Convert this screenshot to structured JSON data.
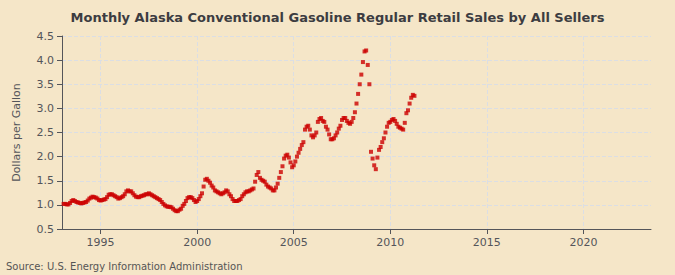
{
  "chart_data": {
    "type": "scatter",
    "title": "Monthly Alaska Conventional Gasoline Regular Retail Sales by All Sellers",
    "ylabel": "Dollars per Gallon",
    "source": "Source: U.S. Energy Information Administration",
    "color": "#cc0000",
    "marker": "square",
    "grid": true,
    "xlim": [
      1993.0,
      2023.5
    ],
    "ylim": [
      0.5,
      4.5
    ],
    "xticks": [
      1995,
      2000,
      2005,
      2010,
      2015,
      2020
    ],
    "yticks": [
      0.5,
      {
        "value": 1,
        "label": "1.0"
      },
      1.5,
      {
        "value": 2,
        "label": "2.0"
      },
      2.5,
      {
        "value": 3,
        "label": "3.0"
      },
      3.5,
      {
        "value": 4,
        "label": "4.0"
      },
      4.5
    ],
    "x": [
      1993.083,
      1993.167,
      1993.25,
      1993.333,
      1993.417,
      1993.5,
      1993.583,
      1993.667,
      1993.75,
      1993.833,
      1993.917,
      1994.0,
      1994.083,
      1994.167,
      1994.25,
      1994.333,
      1994.417,
      1994.5,
      1994.583,
      1994.667,
      1994.75,
      1994.833,
      1994.917,
      1995.0,
      1995.083,
      1995.167,
      1995.25,
      1995.333,
      1995.417,
      1995.5,
      1995.583,
      1995.667,
      1995.75,
      1995.833,
      1995.917,
      1996.0,
      1996.083,
      1996.167,
      1996.25,
      1996.333,
      1996.417,
      1996.5,
      1996.583,
      1996.667,
      1996.75,
      1996.833,
      1996.917,
      1997.0,
      1997.083,
      1997.167,
      1997.25,
      1997.333,
      1997.417,
      1997.5,
      1997.583,
      1997.667,
      1997.75,
      1997.833,
      1997.917,
      1998.0,
      1998.083,
      1998.167,
      1998.25,
      1998.333,
      1998.417,
      1998.5,
      1998.583,
      1998.667,
      1998.75,
      1998.833,
      1998.917,
      1999.0,
      1999.083,
      1999.167,
      1999.25,
      1999.333,
      1999.417,
      1999.5,
      1999.583,
      1999.667,
      1999.75,
      1999.833,
      1999.917,
      2000.0,
      2000.083,
      2000.167,
      2000.25,
      2000.333,
      2000.417,
      2000.5,
      2000.583,
      2000.667,
      2000.75,
      2000.833,
      2000.917,
      2001.0,
      2001.083,
      2001.167,
      2001.25,
      2001.333,
      2001.417,
      2001.5,
      2001.583,
      2001.667,
      2001.75,
      2001.833,
      2001.917,
      2002.0,
      2002.083,
      2002.167,
      2002.25,
      2002.333,
      2002.417,
      2002.5,
      2002.583,
      2002.667,
      2002.75,
      2002.833,
      2002.917,
      2003.0,
      2003.083,
      2003.167,
      2003.25,
      2003.333,
      2003.417,
      2003.5,
      2003.583,
      2003.667,
      2003.75,
      2003.833,
      2003.917,
      2004.0,
      2004.083,
      2004.167,
      2004.25,
      2004.333,
      2004.417,
      2004.5,
      2004.583,
      2004.667,
      2004.75,
      2004.833,
      2004.917,
      2005.0,
      2005.083,
      2005.167,
      2005.25,
      2005.333,
      2005.417,
      2005.5,
      2005.583,
      2005.667,
      2005.75,
      2005.833,
      2005.917,
      2006.0,
      2006.083,
      2006.167,
      2006.25,
      2006.333,
      2006.417,
      2006.5,
      2006.583,
      2006.667,
      2006.75,
      2006.833,
      2006.917,
      2007.0,
      2007.083,
      2007.167,
      2007.25,
      2007.333,
      2007.417,
      2007.5,
      2007.583,
      2007.667,
      2007.75,
      2007.833,
      2007.917,
      2008.0,
      2008.083,
      2008.167,
      2008.25,
      2008.333,
      2008.417,
      2008.5,
      2008.583,
      2008.667,
      2008.75,
      2008.833,
      2008.917,
      2009.0,
      2009.083,
      2009.167,
      2009.25,
      2009.333,
      2009.417,
      2009.5,
      2009.583,
      2009.667,
      2009.75,
      2009.833,
      2009.917,
      2010.0,
      2010.083,
      2010.167,
      2010.25,
      2010.333,
      2010.417,
      2010.5,
      2010.583,
      2010.667,
      2010.75,
      2010.833,
      2010.917,
      2011.0,
      2011.083,
      2011.167,
      2011.25
    ],
    "values": [
      1.02,
      1.02,
      1.01,
      1.01,
      1.04,
      1.08,
      1.1,
      1.08,
      1.06,
      1.05,
      1.04,
      1.03,
      1.04,
      1.05,
      1.06,
      1.09,
      1.13,
      1.15,
      1.17,
      1.16,
      1.15,
      1.13,
      1.1,
      1.09,
      1.1,
      1.11,
      1.12,
      1.16,
      1.21,
      1.22,
      1.22,
      1.2,
      1.18,
      1.16,
      1.13,
      1.14,
      1.16,
      1.18,
      1.22,
      1.28,
      1.3,
      1.28,
      1.28,
      1.24,
      1.2,
      1.17,
      1.16,
      1.16,
      1.18,
      1.19,
      1.2,
      1.22,
      1.22,
      1.24,
      1.22,
      1.2,
      1.18,
      1.16,
      1.14,
      1.12,
      1.1,
      1.06,
      1.02,
      0.99,
      0.97,
      0.96,
      0.96,
      0.95,
      0.92,
      0.89,
      0.87,
      0.87,
      0.9,
      0.92,
      0.98,
      1.02,
      1.08,
      1.14,
      1.16,
      1.16,
      1.14,
      1.1,
      1.06,
      1.08,
      1.12,
      1.18,
      1.24,
      1.38,
      1.52,
      1.54,
      1.5,
      1.46,
      1.4,
      1.36,
      1.3,
      1.28,
      1.26,
      1.24,
      1.22,
      1.24,
      1.26,
      1.3,
      1.28,
      1.22,
      1.18,
      1.12,
      1.08,
      1.08,
      1.08,
      1.1,
      1.12,
      1.18,
      1.22,
      1.26,
      1.28,
      1.28,
      1.3,
      1.32,
      1.34,
      1.48,
      1.62,
      1.68,
      1.56,
      1.52,
      1.5,
      1.48,
      1.42,
      1.38,
      1.36,
      1.34,
      1.3,
      1.3,
      1.36,
      1.44,
      1.56,
      1.68,
      1.8,
      1.96,
      2.02,
      2.04,
      1.98,
      1.88,
      1.78,
      1.82,
      1.9,
      2.0,
      2.08,
      2.16,
      2.24,
      2.3,
      2.56,
      2.62,
      2.64,
      2.56,
      2.44,
      2.4,
      2.44,
      2.5,
      2.72,
      2.78,
      2.8,
      2.74,
      2.72,
      2.62,
      2.56,
      2.46,
      2.36,
      2.36,
      2.38,
      2.44,
      2.5,
      2.58,
      2.64,
      2.76,
      2.8,
      2.8,
      2.74,
      2.7,
      2.68,
      2.72,
      2.8,
      2.92,
      3.1,
      3.3,
      3.5,
      3.7,
      3.96,
      4.18,
      4.2,
      3.9,
      3.5,
      2.1,
      1.96,
      1.82,
      1.74,
      1.98,
      2.14,
      2.2,
      2.3,
      2.38,
      2.5,
      2.62,
      2.7,
      2.72,
      2.76,
      2.78,
      2.74,
      2.68,
      2.62,
      2.6,
      2.58,
      2.56,
      2.7,
      2.9,
      2.96,
      3.1,
      3.22,
      3.28,
      3.26
    ]
  }
}
